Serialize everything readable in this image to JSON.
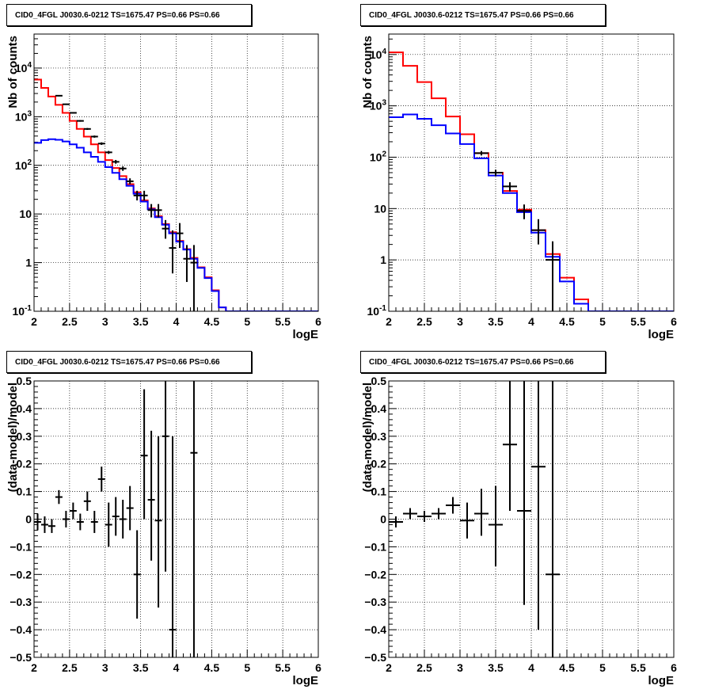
{
  "chart_data": [
    {
      "type": "line",
      "title": "CID0_4FGL J0030.6-0212 TS=1675.47 PS=0.66 PS=0.66",
      "xlabel": "logE",
      "ylabel": "Nb of counts",
      "yscale": "log",
      "xlim": [
        2,
        6
      ],
      "ylim": [
        0.1,
        50000
      ],
      "grid": true,
      "x_ticks": [
        "2",
        "2.5",
        "3",
        "3.5",
        "4",
        "4.5",
        "5",
        "5.5",
        "6"
      ],
      "y_ticks": [
        "10^-1",
        "1",
        "10",
        "10^2",
        "10^3",
        "10^4"
      ],
      "bin_edges": [
        2.0,
        2.1,
        2.2,
        2.3,
        2.4,
        2.5,
        2.6,
        2.7,
        2.8,
        2.9,
        3.0,
        3.1,
        3.2,
        3.3,
        3.4,
        3.5,
        3.6,
        3.7,
        3.8,
        3.9,
        4.0,
        4.1,
        4.2,
        4.3,
        4.4,
        4.5,
        4.6,
        4.7,
        4.8,
        4.9,
        5.0,
        5.1,
        5.2,
        5.3,
        5.4,
        5.5,
        5.6,
        5.7,
        5.8,
        5.9,
        6.0
      ],
      "series": [
        {
          "color": "#ff0000",
          "style": "step",
          "values": [
            5800,
            3900,
            2600,
            1750,
            1200,
            820,
            560,
            390,
            270,
            185,
            128,
            88,
            60,
            41,
            28,
            19,
            13,
            9,
            6.2,
            4.2,
            2.8,
            1.9,
            1.25,
            0.8,
            0.5,
            0.27,
            0.12,
            0.1,
            0.1,
            0.1,
            0.1,
            0.1,
            0.1,
            0.1,
            0.1,
            0.1,
            0.1,
            0.1,
            0.1,
            0.1
          ]
        },
        {
          "color": "#0000ff",
          "style": "step",
          "values": [
            290,
            330,
            345,
            335,
            310,
            270,
            230,
            185,
            150,
            118,
            92,
            70,
            52,
            38,
            26,
            18,
            12.5,
            8.6,
            6.0,
            4.0,
            2.7,
            1.85,
            1.2,
            0.78,
            0.48,
            0.26,
            0.12,
            0.1,
            0.1,
            0.1,
            0.1,
            0.1,
            0.1,
            0.1,
            0.1,
            0.1,
            0.1,
            0.1,
            0.1,
            0.1
          ]
        },
        {
          "color": "#000000",
          "style": "errorbar",
          "x": [
            2.35,
            2.45,
            2.55,
            2.65,
            2.75,
            2.85,
            2.95,
            3.05,
            3.15,
            3.25,
            3.35,
            3.45,
            3.55,
            3.65,
            3.75,
            3.85,
            3.95,
            4.05,
            4.15,
            4.25
          ],
          "y": [
            2700,
            1800,
            1200,
            820,
            560,
            390,
            280,
            185,
            118,
            86,
            47,
            24,
            24,
            12,
            12,
            5,
            2,
            4,
            1.2,
            1
          ],
          "ylow": [
            2620,
            1750,
            1160,
            790,
            535,
            370,
            263,
            172,
            108,
            77,
            41,
            19,
            19,
            8.5,
            8.5,
            3.1,
            0.6,
            2,
            0.4,
            0.1
          ],
          "yhigh": [
            2780,
            1850,
            1240,
            850,
            585,
            410,
            297,
            198,
            129,
            95,
            54,
            30,
            30,
            16,
            16,
            7.5,
            4.6,
            6.5,
            2.3,
            2.3
          ],
          "xerr": 0.05
        }
      ]
    },
    {
      "type": "line",
      "title": "CID0_4FGL J0030.6-0212 TS=1675.47 PS=0.66 PS=0.66",
      "xlabel": "logE",
      "ylabel": "Nb of counts",
      "yscale": "log",
      "xlim": [
        2,
        6
      ],
      "ylim": [
        0.1,
        25000
      ],
      "grid": true,
      "x_ticks": [
        "2",
        "2.5",
        "3",
        "3.5",
        "4",
        "4.5",
        "5",
        "5.5",
        "6"
      ],
      "y_ticks": [
        "10^-1",
        "1",
        "10",
        "10^2",
        "10^3",
        "10^4"
      ],
      "bin_edges": [
        2.0,
        2.2,
        2.4,
        2.6,
        2.8,
        3.0,
        3.2,
        3.4,
        3.6,
        3.8,
        4.0,
        4.2,
        4.4,
        4.6,
        4.8,
        5.0,
        5.2,
        5.4,
        5.6,
        5.8,
        6.0
      ],
      "series": [
        {
          "color": "#ff0000",
          "style": "step",
          "values": [
            11000,
            6000,
            2900,
            1400,
            620,
            280,
            120,
            50,
            22,
            9.5,
            3.8,
            1.3,
            0.45,
            0.17,
            0.1,
            0.1,
            0.1,
            0.1,
            0.1,
            0.1
          ]
        },
        {
          "color": "#0000ff",
          "style": "step",
          "values": [
            600,
            680,
            560,
            420,
            290,
            180,
            95,
            44,
            20,
            8.5,
            3.4,
            1.15,
            0.38,
            0.14,
            0.1,
            0.1,
            0.1,
            0.1,
            0.1,
            0.1
          ]
        },
        {
          "color": "#000000",
          "style": "errorbar",
          "x": [
            3.3,
            3.5,
            3.7,
            3.9,
            4.1,
            4.3
          ],
          "y": [
            120,
            50,
            27,
            9,
            3.8,
            1
          ],
          "ylow": [
            108,
            43,
            21.5,
            6.2,
            2,
            0.1
          ],
          "yhigh": [
            132,
            57,
            32.5,
            12,
            6.2,
            2.3
          ],
          "xerr": 0.1
        }
      ]
    },
    {
      "type": "scatter",
      "title": "CID0_4FGL J0030.6-0212 TS=1675.47 PS=0.66 PS=0.66",
      "xlabel": "logE",
      "ylabel": "(data-model)/model",
      "yscale": "linear",
      "xlim": [
        2,
        6
      ],
      "ylim": [
        -0.5,
        0.5
      ],
      "grid": true,
      "x_ticks": [
        "2",
        "2.5",
        "3",
        "3.5",
        "4",
        "4.5",
        "5",
        "5.5",
        "6"
      ],
      "y_ticks": [
        "−0.5",
        "−0.4",
        "−0.3",
        "−0.2",
        "−0.1",
        "0",
        "0.1",
        "0.2",
        "0.3",
        "0.4",
        "0.5"
      ],
      "series": [
        {
          "color": "#000000",
          "style": "errorbar",
          "x": [
            2.05,
            2.15,
            2.25,
            2.35,
            2.45,
            2.55,
            2.65,
            2.75,
            2.85,
            2.95,
            3.05,
            3.15,
            3.25,
            3.35,
            3.45,
            3.55,
            3.65,
            3.75,
            3.85,
            3.95,
            4.25
          ],
          "y": [
            -0.01,
            -0.02,
            -0.025,
            0.08,
            0.0,
            0.03,
            -0.01,
            0.065,
            -0.01,
            0.145,
            -0.02,
            0.01,
            0.0,
            0.04,
            -0.2,
            0.23,
            0.07,
            -0.005,
            0.3,
            -0.4,
            0.24
          ],
          "ylow": [
            -0.04,
            -0.05,
            -0.05,
            0.055,
            -0.03,
            0.0,
            -0.04,
            0.03,
            -0.05,
            0.1,
            -0.1,
            -0.06,
            -0.07,
            -0.04,
            -0.36,
            0.0,
            -0.15,
            -0.32,
            -0.19,
            -0.5,
            -0.5
          ],
          "yhigh": [
            0.02,
            0.01,
            0.0,
            0.105,
            0.03,
            0.06,
            0.02,
            0.1,
            0.03,
            0.19,
            0.06,
            0.08,
            0.07,
            0.12,
            -0.04,
            0.47,
            0.32,
            0.3,
            0.5,
            0.3,
            0.5
          ],
          "xerr": 0.05
        }
      ]
    },
    {
      "type": "scatter",
      "title": "CID0_4FGL J0030.6-0212 TS=1675.47 PS=0.66 PS=0.66",
      "xlabel": "logE",
      "ylabel": "(data-model)/model",
      "yscale": "linear",
      "xlim": [
        2,
        6
      ],
      "ylim": [
        -0.5,
        0.5
      ],
      "grid": true,
      "x_ticks": [
        "2",
        "2.5",
        "3",
        "3.5",
        "4",
        "4.5",
        "5",
        "5.5",
        "6"
      ],
      "y_ticks": [
        "−0.5",
        "−0.4",
        "−0.3",
        "−0.2",
        "−0.1",
        "0",
        "0.1",
        "0.2",
        "0.3",
        "0.4",
        "0.5"
      ],
      "series": [
        {
          "color": "#000000",
          "style": "errorbar",
          "x": [
            2.1,
            2.3,
            2.5,
            2.7,
            2.9,
            3.1,
            3.3,
            3.5,
            3.7,
            3.9,
            4.1,
            4.3
          ],
          "y": [
            -0.01,
            0.02,
            0.01,
            0.02,
            0.05,
            -0.005,
            0.02,
            -0.02,
            0.27,
            0.03,
            0.19,
            -0.2
          ],
          "ylow": [
            -0.03,
            0.0,
            -0.01,
            0.0,
            0.02,
            -0.07,
            -0.06,
            -0.17,
            0.03,
            -0.31,
            -0.4,
            -0.5
          ],
          "yhigh": [
            0.01,
            0.04,
            0.03,
            0.04,
            0.08,
            0.06,
            0.11,
            0.12,
            0.5,
            0.5,
            0.5,
            0.5
          ],
          "xerr": 0.1
        }
      ]
    }
  ]
}
